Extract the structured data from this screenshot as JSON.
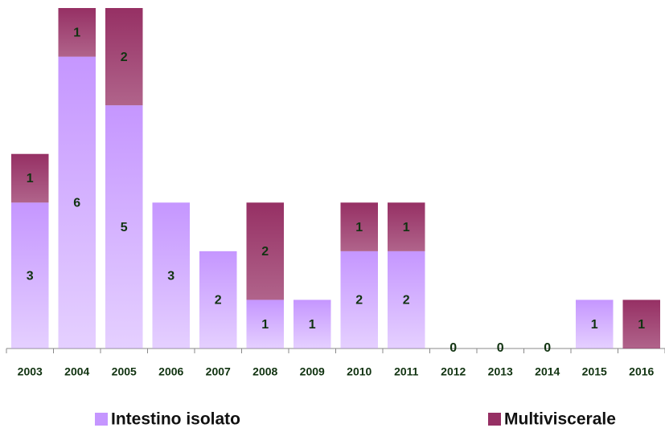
{
  "chart_data": {
    "type": "stacked_bar",
    "categories": [
      "2003",
      "2004",
      "2005",
      "2006",
      "2007",
      "2008",
      "2009",
      "2010",
      "2011",
      "2012",
      "2013",
      "2014",
      "2015",
      "2016"
    ],
    "series": [
      {
        "name": "Intestino isolato",
        "color": "#c596ff",
        "values": [
          3,
          6,
          5,
          3,
          2,
          1,
          1,
          2,
          2,
          0,
          0,
          0,
          1,
          0
        ]
      },
      {
        "name": "Multiviscerale",
        "color": "#963064",
        "values": [
          1,
          1,
          2,
          0,
          0,
          2,
          0,
          1,
          1,
          0,
          0,
          0,
          0,
          1
        ]
      }
    ],
    "ylim": [
      0,
      7
    ]
  }
}
